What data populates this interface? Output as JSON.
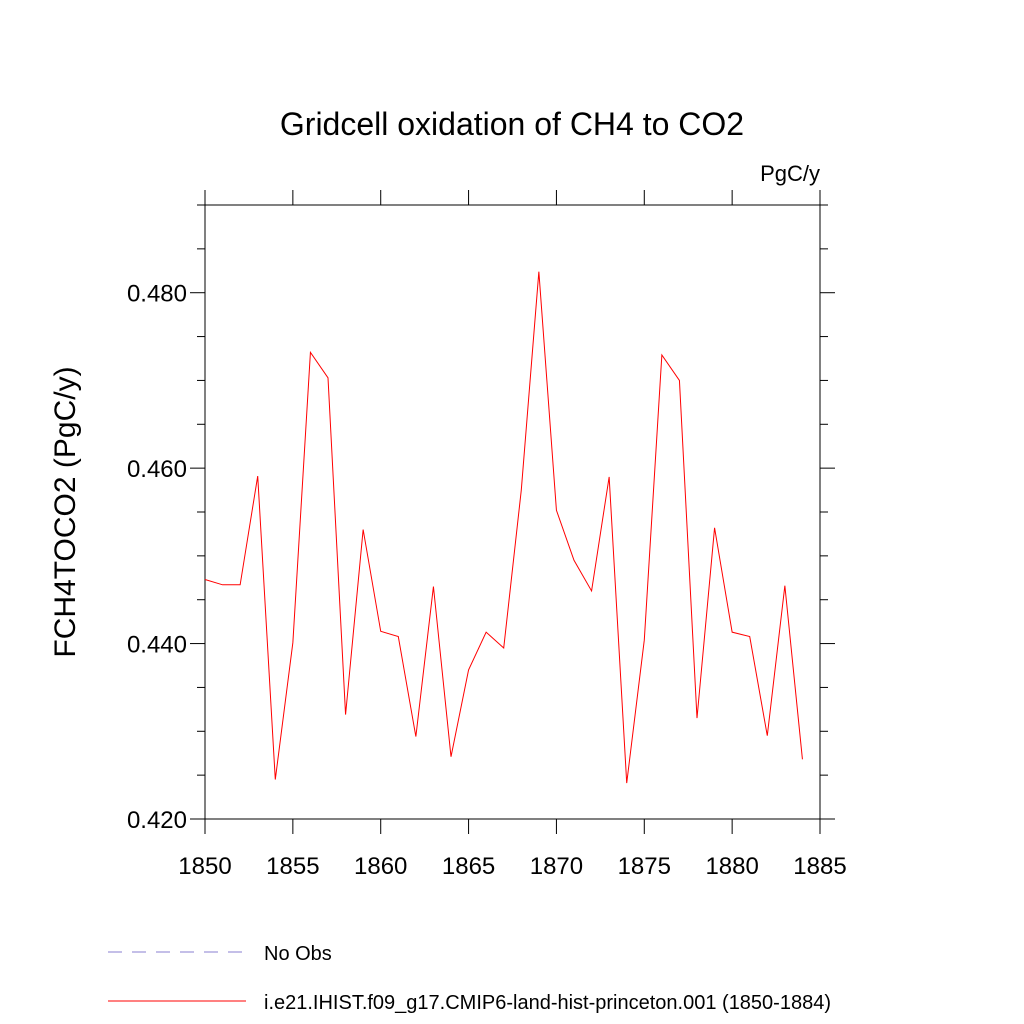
{
  "chart_data": {
    "type": "line",
    "title": "Gridcell oxidation of CH4 to CO2",
    "units": "PgC/y",
    "y_label": "FCH4TOCO2  (PgC/y)",
    "x": [
      1850,
      1851,
      1852,
      1853,
      1854,
      1855,
      1856,
      1857,
      1858,
      1859,
      1860,
      1861,
      1862,
      1863,
      1864,
      1865,
      1866,
      1867,
      1868,
      1869,
      1870,
      1871,
      1872,
      1873,
      1874,
      1875,
      1876,
      1877,
      1878,
      1879,
      1880,
      1881,
      1882,
      1883,
      1884
    ],
    "series": [
      {
        "name": "No Obs",
        "color": "#8a7fd0",
        "dash": true,
        "values": [
          null,
          null,
          null,
          null,
          null,
          null,
          null,
          null,
          null,
          null,
          null,
          null,
          null,
          null,
          null,
          null,
          null,
          null,
          null,
          null,
          null,
          null,
          null,
          null,
          null,
          null,
          null,
          null,
          null,
          null,
          null,
          null,
          null,
          null,
          null
        ]
      },
      {
        "name": "i.e21.IHIST.f09_g17.CMIP6-land-hist-princeton.001 (1850-1884)",
        "color": "#ff0000",
        "dash": false,
        "values": [
          0.4473,
          0.4467,
          0.4467,
          0.4591,
          0.4245,
          0.4401,
          0.4732,
          0.4703,
          0.4319,
          0.453,
          0.4414,
          0.4408,
          0.4294,
          0.4465,
          0.4271,
          0.437,
          0.4413,
          0.4395,
          0.4575,
          0.4824,
          0.4552,
          0.4495,
          0.446,
          0.459,
          0.4241,
          0.4404,
          0.4729,
          0.47,
          0.4315,
          0.4532,
          0.4413,
          0.4408,
          0.4295,
          0.4466,
          0.4268
        ]
      }
    ],
    "xlim": [
      1850,
      1885
    ],
    "xticks": [
      1850,
      1855,
      1860,
      1865,
      1870,
      1875,
      1880,
      1885
    ],
    "ylim": [
      0.42,
      0.49
    ],
    "yticks": [
      {
        "value": 0.42,
        "label": "0.420"
      },
      {
        "value": 0.44,
        "label": "0.440"
      },
      {
        "value": 0.46,
        "label": "0.460"
      },
      {
        "value": 0.48,
        "label": "0.480"
      }
    ],
    "yminorticks": [
      0.425,
      0.43,
      0.435,
      0.445,
      0.45,
      0.455,
      0.465,
      0.47,
      0.475,
      0.485,
      0.49
    ]
  }
}
